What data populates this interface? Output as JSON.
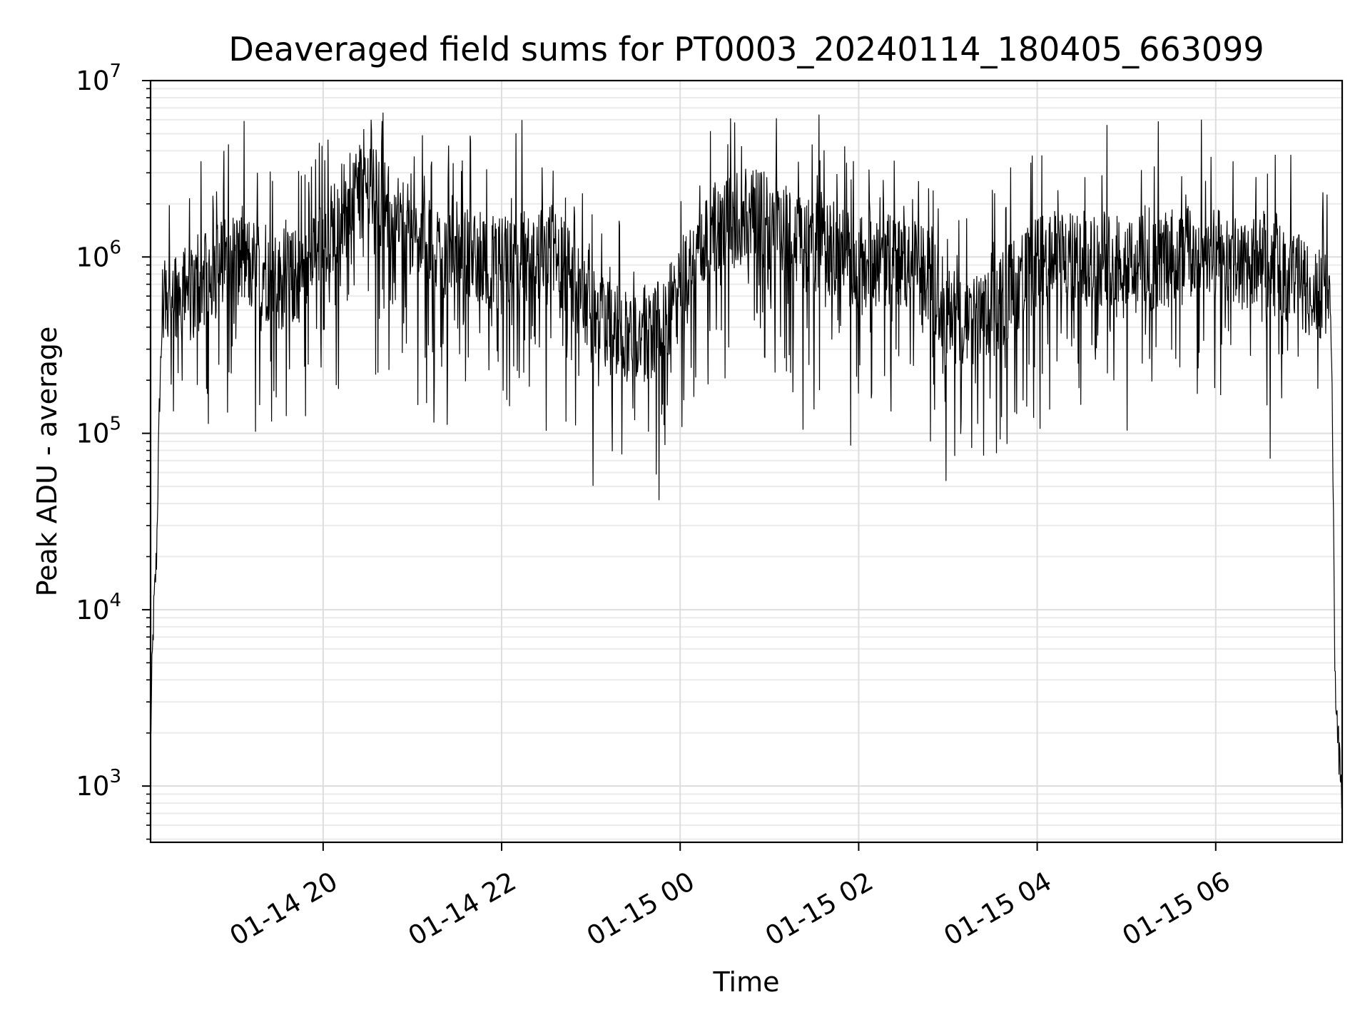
{
  "chart_data": {
    "type": "line",
    "title": "Deaveraged field sums for PT0003_20240114_180405_663099",
    "xlabel": "Time",
    "ylabel": "Peak ADU - average",
    "yscale": "log",
    "ylim": [
      480,
      10000000
    ],
    "xlim": [
      "2024-01-14 18:04",
      "2024-01-15 07:25"
    ],
    "grid": "on (major and minor, light gray)",
    "line_color": "#000000",
    "x_ticks": [
      {
        "t": "2024-01-14 20:00",
        "label": "01-14 20"
      },
      {
        "t": "2024-01-14 22:00",
        "label": "01-14 22"
      },
      {
        "t": "2024-01-15 00:00",
        "label": "01-15 00"
      },
      {
        "t": "2024-01-15 02:00",
        "label": "01-15 02"
      },
      {
        "t": "2024-01-15 04:00",
        "label": "01-15 04"
      },
      {
        "t": "2024-01-15 06:00",
        "label": "01-15 06"
      }
    ],
    "y_ticks": [
      {
        "value": 1000,
        "base": "10",
        "exp": "3"
      },
      {
        "value": 10000,
        "base": "10",
        "exp": "4"
      },
      {
        "value": 100000,
        "base": "10",
        "exp": "5"
      },
      {
        "value": 1000000,
        "base": "10",
        "exp": "6"
      },
      {
        "value": 10000000,
        "base": "10",
        "exp": "7"
      }
    ],
    "series": [
      {
        "x": [
          "2024-01-14 18:04",
          "2024-01-14 18:05",
          "2024-01-14 18:06",
          "2024-01-14 18:08",
          "2024-01-14 18:10",
          "2024-01-14 18:12",
          "2024-01-14 18:15",
          "2024-01-14 18:30",
          "2024-01-14 18:45",
          "2024-01-14 19:00",
          "2024-01-14 19:15",
          "2024-01-14 19:30",
          "2024-01-14 19:45",
          "2024-01-14 20:00",
          "2024-01-14 20:15",
          "2024-01-14 20:30",
          "2024-01-14 20:45",
          "2024-01-14 21:00",
          "2024-01-14 21:15",
          "2024-01-14 21:30",
          "2024-01-14 21:45",
          "2024-01-14 22:00",
          "2024-01-14 22:15",
          "2024-01-14 22:30",
          "2024-01-14 22:45",
          "2024-01-14 23:00",
          "2024-01-14 23:15",
          "2024-01-14 23:30",
          "2024-01-14 23:45",
          "2024-01-15 00:00",
          "2024-01-15 00:15",
          "2024-01-15 00:30",
          "2024-01-15 00:45",
          "2024-01-15 01:00",
          "2024-01-15 01:15",
          "2024-01-15 01:30",
          "2024-01-15 01:45",
          "2024-01-15 02:00",
          "2024-01-15 02:15",
          "2024-01-15 02:30",
          "2024-01-15 02:45",
          "2024-01-15 03:00",
          "2024-01-15 03:15",
          "2024-01-15 03:30",
          "2024-01-15 03:45",
          "2024-01-15 04:00",
          "2024-01-15 04:15",
          "2024-01-15 04:30",
          "2024-01-15 04:45",
          "2024-01-15 05:00",
          "2024-01-15 05:15",
          "2024-01-15 05:30",
          "2024-01-15 05:45",
          "2024-01-15 06:00",
          "2024-01-15 06:15",
          "2024-01-15 06:30",
          "2024-01-15 06:45",
          "2024-01-15 07:00",
          "2024-01-15 07:10",
          "2024-01-15 07:16",
          "2024-01-15 07:18",
          "2024-01-15 07:20",
          "2024-01-15 07:22",
          "2024-01-15 07:24",
          "2024-01-15 07:25"
        ],
        "y": [
          1700,
          4500,
          9000,
          20000,
          150000,
          500000,
          700000,
          600000,
          800000,
          1000000,
          900000,
          700000,
          800000,
          1200000,
          2000000,
          2500000,
          1800000,
          1300000,
          1100000,
          1100000,
          1000000,
          900000,
          1000000,
          1100000,
          900000,
          450000,
          400000,
          350000,
          400000,
          600000,
          1200000,
          1500000,
          1700000,
          1600000,
          1300000,
          1200000,
          1100000,
          900000,
          1000000,
          900000,
          800000,
          500000,
          400000,
          500000,
          700000,
          900000,
          1000000,
          900000,
          1000000,
          1000000,
          900000,
          1000000,
          1000000,
          1000000,
          900000,
          1000000,
          800000,
          700000,
          600000,
          700000,
          300000,
          5000,
          2000,
          1000,
          800
        ]
      }
    ]
  }
}
